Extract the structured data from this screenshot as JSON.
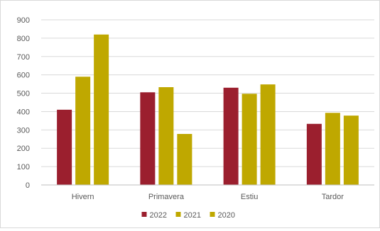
{
  "chart_data": {
    "type": "bar",
    "categories": [
      "Hivern",
      "Primavera",
      "Estiu",
      "Tardor"
    ],
    "series": [
      {
        "name": "2022",
        "values": [
          410,
          505,
          530,
          333
        ],
        "color": "#9b1f2e"
      },
      {
        "name": "2021",
        "values": [
          590,
          533,
          497,
          393
        ],
        "color": "#bfa800"
      },
      {
        "name": "2020",
        "values": [
          820,
          278,
          548,
          378
        ],
        "color": "#bfa800"
      }
    ],
    "title": "",
    "xlabel": "",
    "ylabel": "",
    "ylim": [
      0,
      900
    ],
    "yticks": [
      0,
      100,
      200,
      300,
      400,
      500,
      600,
      700,
      800,
      900
    ],
    "grid": true,
    "legend": "bottom-center"
  }
}
